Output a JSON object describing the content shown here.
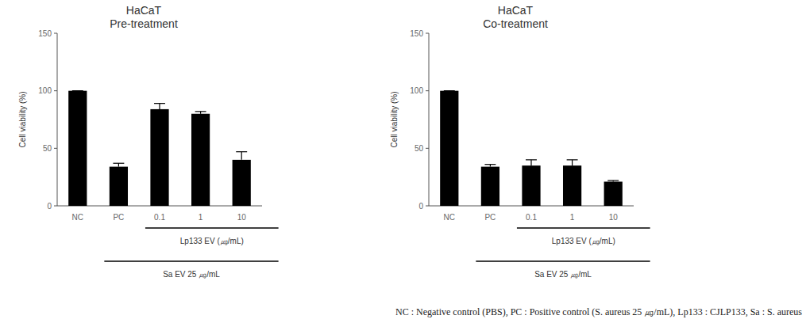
{
  "chart_data": [
    {
      "type": "bar",
      "title": "HaCaT",
      "subtitle": "Pre-treatment",
      "y_label": "Cell viability (%)",
      "categories": [
        "NC",
        "PC",
        "0.1",
        "1",
        "10"
      ],
      "values": [
        100,
        34,
        84,
        80,
        40
      ],
      "errors": [
        0,
        3,
        5,
        2,
        7
      ],
      "color": "#000000",
      "ylim": [
        0,
        150
      ],
      "yticks": [
        0,
        50,
        100,
        150
      ],
      "annotations": [
        {
          "text": "Lp133 EV (㎍/mL)",
          "categories": [
            "0.1",
            "1",
            "10"
          ]
        },
        {
          "text": "Sa EV 25 ㎍/mL",
          "categories": [
            "PC",
            "0.1",
            "1",
            "10"
          ]
        }
      ]
    },
    {
      "type": "bar",
      "title": "HaCaT",
      "subtitle": "Co-treatment",
      "y_label": "Cell viability (%)",
      "categories": [
        "NC",
        "PC",
        "0.1",
        "1",
        "10"
      ],
      "values": [
        100,
        34,
        35,
        35,
        21
      ],
      "errors": [
        0,
        2,
        5,
        5,
        1
      ],
      "color": "#000000",
      "ylim": [
        0,
        150
      ],
      "yticks": [
        0,
        50,
        100,
        150
      ],
      "annotations": [
        {
          "text": "Lp133 EV (㎍/mL)",
          "categories": [
            "0.1",
            "1",
            "10"
          ]
        },
        {
          "text": "Sa EV 25 ㎍/mL",
          "categories": [
            "PC",
            "0.1",
            "1",
            "10"
          ]
        }
      ]
    }
  ],
  "footnote": "NC : Negative control (PBS), PC : Positive control (S. aureus 25 ㎍/mL), Lp133 : CJLP133, Sa : S. aureus"
}
